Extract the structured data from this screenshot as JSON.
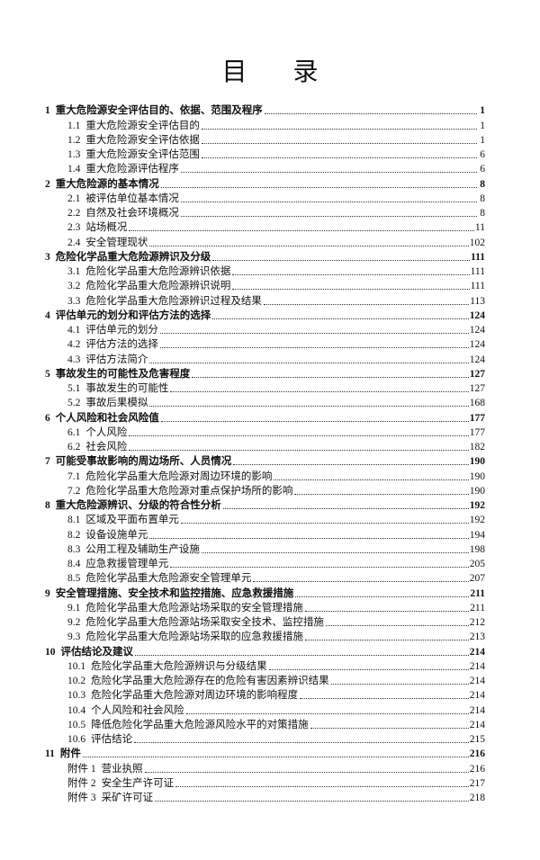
{
  "title": "目 录",
  "entries": [
    {
      "level": 1,
      "num": "1",
      "text": "重大危险源安全评估目的、依据、范围及程序",
      "page": "1"
    },
    {
      "level": 2,
      "num": "1.1",
      "text": "重大危险源安全评估目的",
      "page": "1"
    },
    {
      "level": 2,
      "num": "1.2",
      "text": "重大危险源安全评估依据",
      "page": "1"
    },
    {
      "level": 2,
      "num": "1.3",
      "text": "重大危险源安全评估范围",
      "page": "6"
    },
    {
      "level": 2,
      "num": "1.4",
      "text": "重大危险源评估程序",
      "page": "6"
    },
    {
      "level": 1,
      "num": "2",
      "text": "重大危险源的基本情况",
      "page": "8"
    },
    {
      "level": 2,
      "num": "2.1",
      "text": "被评估单位基本情况",
      "page": "8"
    },
    {
      "level": 2,
      "num": "2.2",
      "text": "自然及社会环境概况",
      "page": "8"
    },
    {
      "level": 2,
      "num": "2.3",
      "text": "站场概况",
      "page": "11"
    },
    {
      "level": 2,
      "num": "2.4",
      "text": "安全管理现状",
      "page": "102"
    },
    {
      "level": 1,
      "num": "3",
      "text": "危险化学品重大危险源辨识及分级",
      "page": "111"
    },
    {
      "level": 2,
      "num": "3.1",
      "text": "危险化学品重大危险源辨识依据",
      "page": "111"
    },
    {
      "level": 2,
      "num": "3.2",
      "text": "危险化学品重大危险源辨识说明",
      "page": "111"
    },
    {
      "level": 2,
      "num": "3.3",
      "text": "危险化学品重大危险源辨识过程及结果",
      "page": "113"
    },
    {
      "level": 1,
      "num": "4",
      "text": "评估单元的划分和评估方法的选择",
      "page": "124"
    },
    {
      "level": 2,
      "num": "4.1",
      "text": "评估单元的划分",
      "page": "124"
    },
    {
      "level": 2,
      "num": "4.2",
      "text": "评估方法的选择",
      "page": "124"
    },
    {
      "level": 2,
      "num": "4.3",
      "text": "评估方法简介",
      "page": "124"
    },
    {
      "level": 1,
      "num": "5",
      "text": "事故发生的可能性及危害程度",
      "page": "127"
    },
    {
      "level": 2,
      "num": "5.1",
      "text": "事故发生的可能性",
      "page": "127"
    },
    {
      "level": 2,
      "num": "5.2",
      "text": "事故后果模拟",
      "page": "168"
    },
    {
      "level": 1,
      "num": "6",
      "text": "个人风险和社会风险值",
      "page": "177"
    },
    {
      "level": 2,
      "num": "6.1",
      "text": "个人风险",
      "page": "177"
    },
    {
      "level": 2,
      "num": "6.2",
      "text": "社会风险",
      "page": "182"
    },
    {
      "level": 1,
      "num": "7",
      "text": "可能受事故影响的周边场所、人员情况",
      "page": "190"
    },
    {
      "level": 2,
      "num": "7.1",
      "text": "危险化学品重大危险源对周边环境的影响",
      "page": "190"
    },
    {
      "level": 2,
      "num": "7.2",
      "text": "危险化学品重大危险源对重点保护场所的影响",
      "page": "190"
    },
    {
      "level": 1,
      "num": "8",
      "text": "重大危险源辨识、分级的符合性分析",
      "page": "192"
    },
    {
      "level": 2,
      "num": "8.1",
      "text": "区域及平面布置单元",
      "page": "192"
    },
    {
      "level": 2,
      "num": "8.2",
      "text": "设备设施单元",
      "page": "194"
    },
    {
      "level": 2,
      "num": "8.3",
      "text": "公用工程及辅助生产设施",
      "page": "198"
    },
    {
      "level": 2,
      "num": "8.4",
      "text": "应急救援管理单元",
      "page": "205"
    },
    {
      "level": 2,
      "num": "8.5",
      "text": "危险化学品重大危险源安全管理单元",
      "page": "207"
    },
    {
      "level": 1,
      "num": "9",
      "text": "安全管理措施、安全技术和监控措施、应急救援措施",
      "page": "211"
    },
    {
      "level": 2,
      "num": "9.1",
      "text": "危险化学品重大危险源站场采取的安全管理措施",
      "page": "211"
    },
    {
      "level": 2,
      "num": "9.2",
      "text": "危险化学品重大危险源站场采取安全技术、监控措施",
      "page": "212"
    },
    {
      "level": 2,
      "num": "9.3",
      "text": "危险化学品重大危险源站场采取的应急救援措施",
      "page": "213"
    },
    {
      "level": 1,
      "num": "10",
      "text": "评估结论及建议",
      "page": "214"
    },
    {
      "level": 2,
      "num": "10.1",
      "text": "危险化学品重大危险源辨识与分级结果",
      "page": "214"
    },
    {
      "level": 2,
      "num": "10.2",
      "text": "危险化学品重大危险源存在的危险有害因素辨识结果",
      "page": "214"
    },
    {
      "level": 2,
      "num": "10.3",
      "text": "危险化学品重大危险源对周边环境的影响程度",
      "page": "214"
    },
    {
      "level": 2,
      "num": "10.4",
      "text": "个人风险和社会风险",
      "page": "214"
    },
    {
      "level": 2,
      "num": "10.5",
      "text": "降低危险化学品重大危险源风险水平的对策措施",
      "page": "214"
    },
    {
      "level": 2,
      "num": "10.6",
      "text": "评估结论",
      "page": "215"
    },
    {
      "level": 1,
      "num": "11",
      "text": "附件",
      "page": "216"
    },
    {
      "level": 2,
      "num": "附件 1",
      "text": "营业执照",
      "page": "216"
    },
    {
      "level": 2,
      "num": "附件 2",
      "text": "安全生产许可证",
      "page": "217"
    },
    {
      "level": 2,
      "num": "附件 3",
      "text": "采矿许可证",
      "page": "218"
    }
  ]
}
